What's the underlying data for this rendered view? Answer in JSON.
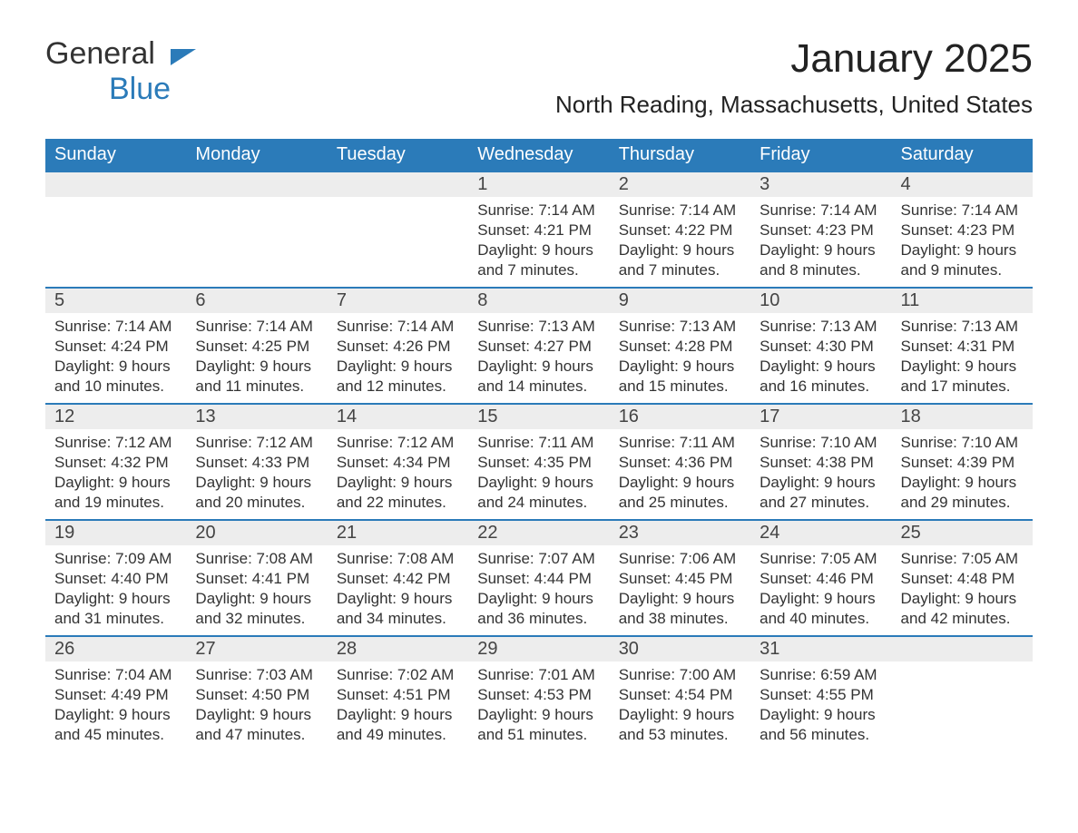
{
  "logo": {
    "text_general": "General",
    "text_blue": "Blue"
  },
  "title": "January 2025",
  "location": "North Reading, Massachusetts, United States",
  "colors": {
    "header_bg": "#2b7bb9",
    "header_text": "#ffffff",
    "daynum_bg": "#ededed",
    "border": "#2b7bb9",
    "text": "#333333",
    "logo_blue": "#2b7bb9"
  },
  "day_headers": [
    "Sunday",
    "Monday",
    "Tuesday",
    "Wednesday",
    "Thursday",
    "Friday",
    "Saturday"
  ],
  "weeks": [
    [
      {
        "num": "",
        "sunrise": "",
        "sunset": "",
        "daylight": ""
      },
      {
        "num": "",
        "sunrise": "",
        "sunset": "",
        "daylight": ""
      },
      {
        "num": "",
        "sunrise": "",
        "sunset": "",
        "daylight": ""
      },
      {
        "num": "1",
        "sunrise": "Sunrise: 7:14 AM",
        "sunset": "Sunset: 4:21 PM",
        "daylight": "Daylight: 9 hours and 7 minutes."
      },
      {
        "num": "2",
        "sunrise": "Sunrise: 7:14 AM",
        "sunset": "Sunset: 4:22 PM",
        "daylight": "Daylight: 9 hours and 7 minutes."
      },
      {
        "num": "3",
        "sunrise": "Sunrise: 7:14 AM",
        "sunset": "Sunset: 4:23 PM",
        "daylight": "Daylight: 9 hours and 8 minutes."
      },
      {
        "num": "4",
        "sunrise": "Sunrise: 7:14 AM",
        "sunset": "Sunset: 4:23 PM",
        "daylight": "Daylight: 9 hours and 9 minutes."
      }
    ],
    [
      {
        "num": "5",
        "sunrise": "Sunrise: 7:14 AM",
        "sunset": "Sunset: 4:24 PM",
        "daylight": "Daylight: 9 hours and 10 minutes."
      },
      {
        "num": "6",
        "sunrise": "Sunrise: 7:14 AM",
        "sunset": "Sunset: 4:25 PM",
        "daylight": "Daylight: 9 hours and 11 minutes."
      },
      {
        "num": "7",
        "sunrise": "Sunrise: 7:14 AM",
        "sunset": "Sunset: 4:26 PM",
        "daylight": "Daylight: 9 hours and 12 minutes."
      },
      {
        "num": "8",
        "sunrise": "Sunrise: 7:13 AM",
        "sunset": "Sunset: 4:27 PM",
        "daylight": "Daylight: 9 hours and 14 minutes."
      },
      {
        "num": "9",
        "sunrise": "Sunrise: 7:13 AM",
        "sunset": "Sunset: 4:28 PM",
        "daylight": "Daylight: 9 hours and 15 minutes."
      },
      {
        "num": "10",
        "sunrise": "Sunrise: 7:13 AM",
        "sunset": "Sunset: 4:30 PM",
        "daylight": "Daylight: 9 hours and 16 minutes."
      },
      {
        "num": "11",
        "sunrise": "Sunrise: 7:13 AM",
        "sunset": "Sunset: 4:31 PM",
        "daylight": "Daylight: 9 hours and 17 minutes."
      }
    ],
    [
      {
        "num": "12",
        "sunrise": "Sunrise: 7:12 AM",
        "sunset": "Sunset: 4:32 PM",
        "daylight": "Daylight: 9 hours and 19 minutes."
      },
      {
        "num": "13",
        "sunrise": "Sunrise: 7:12 AM",
        "sunset": "Sunset: 4:33 PM",
        "daylight": "Daylight: 9 hours and 20 minutes."
      },
      {
        "num": "14",
        "sunrise": "Sunrise: 7:12 AM",
        "sunset": "Sunset: 4:34 PM",
        "daylight": "Daylight: 9 hours and 22 minutes."
      },
      {
        "num": "15",
        "sunrise": "Sunrise: 7:11 AM",
        "sunset": "Sunset: 4:35 PM",
        "daylight": "Daylight: 9 hours and 24 minutes."
      },
      {
        "num": "16",
        "sunrise": "Sunrise: 7:11 AM",
        "sunset": "Sunset: 4:36 PM",
        "daylight": "Daylight: 9 hours and 25 minutes."
      },
      {
        "num": "17",
        "sunrise": "Sunrise: 7:10 AM",
        "sunset": "Sunset: 4:38 PM",
        "daylight": "Daylight: 9 hours and 27 minutes."
      },
      {
        "num": "18",
        "sunrise": "Sunrise: 7:10 AM",
        "sunset": "Sunset: 4:39 PM",
        "daylight": "Daylight: 9 hours and 29 minutes."
      }
    ],
    [
      {
        "num": "19",
        "sunrise": "Sunrise: 7:09 AM",
        "sunset": "Sunset: 4:40 PM",
        "daylight": "Daylight: 9 hours and 31 minutes."
      },
      {
        "num": "20",
        "sunrise": "Sunrise: 7:08 AM",
        "sunset": "Sunset: 4:41 PM",
        "daylight": "Daylight: 9 hours and 32 minutes."
      },
      {
        "num": "21",
        "sunrise": "Sunrise: 7:08 AM",
        "sunset": "Sunset: 4:42 PM",
        "daylight": "Daylight: 9 hours and 34 minutes."
      },
      {
        "num": "22",
        "sunrise": "Sunrise: 7:07 AM",
        "sunset": "Sunset: 4:44 PM",
        "daylight": "Daylight: 9 hours and 36 minutes."
      },
      {
        "num": "23",
        "sunrise": "Sunrise: 7:06 AM",
        "sunset": "Sunset: 4:45 PM",
        "daylight": "Daylight: 9 hours and 38 minutes."
      },
      {
        "num": "24",
        "sunrise": "Sunrise: 7:05 AM",
        "sunset": "Sunset: 4:46 PM",
        "daylight": "Daylight: 9 hours and 40 minutes."
      },
      {
        "num": "25",
        "sunrise": "Sunrise: 7:05 AM",
        "sunset": "Sunset: 4:48 PM",
        "daylight": "Daylight: 9 hours and 42 minutes."
      }
    ],
    [
      {
        "num": "26",
        "sunrise": "Sunrise: 7:04 AM",
        "sunset": "Sunset: 4:49 PM",
        "daylight": "Daylight: 9 hours and 45 minutes."
      },
      {
        "num": "27",
        "sunrise": "Sunrise: 7:03 AM",
        "sunset": "Sunset: 4:50 PM",
        "daylight": "Daylight: 9 hours and 47 minutes."
      },
      {
        "num": "28",
        "sunrise": "Sunrise: 7:02 AM",
        "sunset": "Sunset: 4:51 PM",
        "daylight": "Daylight: 9 hours and 49 minutes."
      },
      {
        "num": "29",
        "sunrise": "Sunrise: 7:01 AM",
        "sunset": "Sunset: 4:53 PM",
        "daylight": "Daylight: 9 hours and 51 minutes."
      },
      {
        "num": "30",
        "sunrise": "Sunrise: 7:00 AM",
        "sunset": "Sunset: 4:54 PM",
        "daylight": "Daylight: 9 hours and 53 minutes."
      },
      {
        "num": "31",
        "sunrise": "Sunrise: 6:59 AM",
        "sunset": "Sunset: 4:55 PM",
        "daylight": "Daylight: 9 hours and 56 minutes."
      },
      {
        "num": "",
        "sunrise": "",
        "sunset": "",
        "daylight": ""
      }
    ]
  ]
}
